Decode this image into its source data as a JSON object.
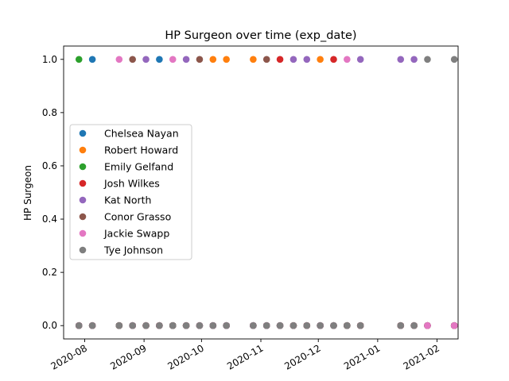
{
  "chart_data": {
    "type": "scatter",
    "title": "HP Surgeon over time (exp_date)",
    "xlabel": "",
    "ylabel": "HP Surgeon",
    "x_axis_kind": "date",
    "xlim": [
      "2020-07-21",
      "2021-02-12"
    ],
    "ylim": [
      -0.05,
      1.05
    ],
    "x_ticks": [
      "2020-08-01",
      "2020-09-01",
      "2020-10-01",
      "2020-11-01",
      "2020-12-01",
      "2021-01-01",
      "2021-02-01"
    ],
    "x_tick_labels": [
      "2020-08",
      "2020-09",
      "2020-10",
      "2020-11",
      "2020-12",
      "2021-01",
      "2021-02"
    ],
    "y_ticks": [
      0.0,
      0.2,
      0.4,
      0.6,
      0.8,
      1.0
    ],
    "y_tick_labels": [
      "0.0",
      "0.2",
      "0.4",
      "0.6",
      "0.8",
      "1.0"
    ],
    "grid": false,
    "legend_position": "center-left",
    "series": [
      {
        "name": "Chelsea Nayan",
        "color": "#1f77b4",
        "points": [
          {
            "x": "2020-07-29",
            "y": 0
          },
          {
            "x": "2020-08-05",
            "y": 1
          },
          {
            "x": "2020-08-19",
            "y": 0
          },
          {
            "x": "2020-08-26",
            "y": 0
          },
          {
            "x": "2020-09-02",
            "y": 0
          },
          {
            "x": "2020-09-09",
            "y": 1
          },
          {
            "x": "2020-09-16",
            "y": 0
          },
          {
            "x": "2020-09-23",
            "y": 0
          },
          {
            "x": "2020-09-30",
            "y": 0
          },
          {
            "x": "2020-10-07",
            "y": 0
          },
          {
            "x": "2020-10-14",
            "y": 0
          },
          {
            "x": "2020-10-28",
            "y": 0
          },
          {
            "x": "2020-11-04",
            "y": 0
          },
          {
            "x": "2020-11-11",
            "y": 0
          },
          {
            "x": "2020-11-18",
            "y": 0
          },
          {
            "x": "2020-11-25",
            "y": 0
          },
          {
            "x": "2020-12-02",
            "y": 0
          },
          {
            "x": "2020-12-09",
            "y": 0
          },
          {
            "x": "2020-12-16",
            "y": 0
          },
          {
            "x": "2020-12-23",
            "y": 0
          },
          {
            "x": "2021-01-13",
            "y": 0
          },
          {
            "x": "2021-01-20",
            "y": 0
          },
          {
            "x": "2021-01-27",
            "y": 0
          },
          {
            "x": "2021-02-10",
            "y": 0
          }
        ]
      },
      {
        "name": "Robert Howard",
        "color": "#ff7f0e",
        "points": [
          {
            "x": "2020-07-29",
            "y": 0
          },
          {
            "x": "2020-08-05",
            "y": 0
          },
          {
            "x": "2020-08-19",
            "y": 0
          },
          {
            "x": "2020-08-26",
            "y": 0
          },
          {
            "x": "2020-09-02",
            "y": 0
          },
          {
            "x": "2020-09-09",
            "y": 0
          },
          {
            "x": "2020-09-16",
            "y": 0
          },
          {
            "x": "2020-09-23",
            "y": 0
          },
          {
            "x": "2020-09-30",
            "y": 0
          },
          {
            "x": "2020-10-07",
            "y": 1
          },
          {
            "x": "2020-10-14",
            "y": 1
          },
          {
            "x": "2020-10-28",
            "y": 1
          },
          {
            "x": "2020-11-04",
            "y": 0
          },
          {
            "x": "2020-11-11",
            "y": 0
          },
          {
            "x": "2020-11-18",
            "y": 0
          },
          {
            "x": "2020-11-25",
            "y": 0
          },
          {
            "x": "2020-12-02",
            "y": 1
          },
          {
            "x": "2020-12-09",
            "y": 0
          },
          {
            "x": "2020-12-16",
            "y": 0
          },
          {
            "x": "2020-12-23",
            "y": 0
          },
          {
            "x": "2021-01-13",
            "y": 0
          },
          {
            "x": "2021-01-20",
            "y": 0
          },
          {
            "x": "2021-01-27",
            "y": 0
          },
          {
            "x": "2021-02-10",
            "y": 0
          }
        ]
      },
      {
        "name": "Emily Gelfand",
        "color": "#2ca02c",
        "points": [
          {
            "x": "2020-07-29",
            "y": 1
          },
          {
            "x": "2020-08-05",
            "y": 0
          },
          {
            "x": "2020-08-19",
            "y": 0
          },
          {
            "x": "2020-08-26",
            "y": 0
          },
          {
            "x": "2020-09-02",
            "y": 0
          },
          {
            "x": "2020-09-09",
            "y": 0
          },
          {
            "x": "2020-09-16",
            "y": 0
          },
          {
            "x": "2020-09-23",
            "y": 0
          },
          {
            "x": "2020-09-30",
            "y": 0
          },
          {
            "x": "2020-10-07",
            "y": 0
          },
          {
            "x": "2020-10-14",
            "y": 0
          },
          {
            "x": "2020-10-28",
            "y": 0
          },
          {
            "x": "2020-11-04",
            "y": 0
          },
          {
            "x": "2020-11-11",
            "y": 0
          },
          {
            "x": "2020-11-18",
            "y": 0
          },
          {
            "x": "2020-11-25",
            "y": 0
          },
          {
            "x": "2020-12-02",
            "y": 0
          },
          {
            "x": "2020-12-09",
            "y": 0
          },
          {
            "x": "2020-12-16",
            "y": 0
          },
          {
            "x": "2020-12-23",
            "y": 0
          },
          {
            "x": "2021-01-13",
            "y": 0
          },
          {
            "x": "2021-01-20",
            "y": 0
          },
          {
            "x": "2021-01-27",
            "y": 0
          },
          {
            "x": "2021-02-10",
            "y": 0
          }
        ]
      },
      {
        "name": "Josh Wilkes",
        "color": "#d62728",
        "points": [
          {
            "x": "2020-07-29",
            "y": 0
          },
          {
            "x": "2020-08-05",
            "y": 0
          },
          {
            "x": "2020-08-19",
            "y": 0
          },
          {
            "x": "2020-08-26",
            "y": 0
          },
          {
            "x": "2020-09-02",
            "y": 0
          },
          {
            "x": "2020-09-09",
            "y": 0
          },
          {
            "x": "2020-09-16",
            "y": 0
          },
          {
            "x": "2020-09-23",
            "y": 0
          },
          {
            "x": "2020-09-30",
            "y": 0
          },
          {
            "x": "2020-10-07",
            "y": 0
          },
          {
            "x": "2020-10-14",
            "y": 0
          },
          {
            "x": "2020-10-28",
            "y": 0
          },
          {
            "x": "2020-11-04",
            "y": 0
          },
          {
            "x": "2020-11-11",
            "y": 1
          },
          {
            "x": "2020-11-18",
            "y": 0
          },
          {
            "x": "2020-11-25",
            "y": 0
          },
          {
            "x": "2020-12-02",
            "y": 0
          },
          {
            "x": "2020-12-09",
            "y": 1
          },
          {
            "x": "2020-12-16",
            "y": 0
          },
          {
            "x": "2020-12-23",
            "y": 0
          },
          {
            "x": "2021-01-13",
            "y": 0
          },
          {
            "x": "2021-01-20",
            "y": 0
          },
          {
            "x": "2021-01-27",
            "y": 0
          },
          {
            "x": "2021-02-10",
            "y": 0
          }
        ]
      },
      {
        "name": "Kat North",
        "color": "#9467bd",
        "points": [
          {
            "x": "2020-07-29",
            "y": 0
          },
          {
            "x": "2020-08-05",
            "y": 0
          },
          {
            "x": "2020-08-19",
            "y": 0
          },
          {
            "x": "2020-08-26",
            "y": 0
          },
          {
            "x": "2020-09-02",
            "y": 1
          },
          {
            "x": "2020-09-09",
            "y": 0
          },
          {
            "x": "2020-09-16",
            "y": 0
          },
          {
            "x": "2020-09-23",
            "y": 1
          },
          {
            "x": "2020-09-30",
            "y": 0
          },
          {
            "x": "2020-10-07",
            "y": 0
          },
          {
            "x": "2020-10-14",
            "y": 0
          },
          {
            "x": "2020-10-28",
            "y": 0
          },
          {
            "x": "2020-11-04",
            "y": 0
          },
          {
            "x": "2020-11-11",
            "y": 0
          },
          {
            "x": "2020-11-18",
            "y": 1
          },
          {
            "x": "2020-11-25",
            "y": 1
          },
          {
            "x": "2020-12-02",
            "y": 0
          },
          {
            "x": "2020-12-09",
            "y": 0
          },
          {
            "x": "2020-12-16",
            "y": 0
          },
          {
            "x": "2020-12-23",
            "y": 1
          },
          {
            "x": "2021-01-13",
            "y": 1
          },
          {
            "x": "2021-01-20",
            "y": 1
          },
          {
            "x": "2021-01-27",
            "y": 0
          },
          {
            "x": "2021-02-10",
            "y": 0
          }
        ]
      },
      {
        "name": "Conor Grasso",
        "color": "#8c564b",
        "points": [
          {
            "x": "2020-07-29",
            "y": 0
          },
          {
            "x": "2020-08-05",
            "y": 0
          },
          {
            "x": "2020-08-19",
            "y": 0
          },
          {
            "x": "2020-08-26",
            "y": 1
          },
          {
            "x": "2020-09-02",
            "y": 0
          },
          {
            "x": "2020-09-09",
            "y": 0
          },
          {
            "x": "2020-09-16",
            "y": 0
          },
          {
            "x": "2020-09-23",
            "y": 0
          },
          {
            "x": "2020-09-30",
            "y": 1
          },
          {
            "x": "2020-10-07",
            "y": 0
          },
          {
            "x": "2020-10-14",
            "y": 0
          },
          {
            "x": "2020-10-28",
            "y": 0
          },
          {
            "x": "2020-11-04",
            "y": 1
          },
          {
            "x": "2020-11-11",
            "y": 0
          },
          {
            "x": "2020-11-18",
            "y": 0
          },
          {
            "x": "2020-11-25",
            "y": 0
          },
          {
            "x": "2020-12-02",
            "y": 0
          },
          {
            "x": "2020-12-09",
            "y": 0
          },
          {
            "x": "2020-12-16",
            "y": 0
          },
          {
            "x": "2020-12-23",
            "y": 0
          },
          {
            "x": "2021-01-13",
            "y": 0
          },
          {
            "x": "2021-01-20",
            "y": 0
          },
          {
            "x": "2021-01-27",
            "y": 0
          },
          {
            "x": "2021-02-10",
            "y": 0
          }
        ]
      },
      {
        "name": "Jackie Swapp",
        "color": "#e377c2",
        "points": [
          {
            "x": "2020-07-29",
            "y": 0
          },
          {
            "x": "2020-08-05",
            "y": 0
          },
          {
            "x": "2020-08-19",
            "y": 1
          },
          {
            "x": "2020-08-26",
            "y": 0
          },
          {
            "x": "2020-09-02",
            "y": 0
          },
          {
            "x": "2020-09-09",
            "y": 0
          },
          {
            "x": "2020-09-16",
            "y": 1
          },
          {
            "x": "2020-09-23",
            "y": 0
          },
          {
            "x": "2020-09-30",
            "y": 0
          },
          {
            "x": "2020-10-07",
            "y": 0
          },
          {
            "x": "2020-10-14",
            "y": 0
          },
          {
            "x": "2020-10-28",
            "y": 0
          },
          {
            "x": "2020-11-04",
            "y": 0
          },
          {
            "x": "2020-11-11",
            "y": 0
          },
          {
            "x": "2020-11-18",
            "y": 0
          },
          {
            "x": "2020-11-25",
            "y": 0
          },
          {
            "x": "2020-12-02",
            "y": 0
          },
          {
            "x": "2020-12-09",
            "y": 0
          },
          {
            "x": "2020-12-16",
            "y": 1
          },
          {
            "x": "2020-12-23",
            "y": 0
          },
          {
            "x": "2021-01-13",
            "y": 0
          },
          {
            "x": "2021-01-20",
            "y": 0
          },
          {
            "x": "2021-01-27",
            "y": 0
          },
          {
            "x": "2021-02-10",
            "y": 0
          }
        ]
      },
      {
        "name": "Tye Johnson",
        "color": "#7f7f7f",
        "points": [
          {
            "x": "2020-07-29",
            "y": 0
          },
          {
            "x": "2020-08-05",
            "y": 0
          },
          {
            "x": "2020-08-19",
            "y": 0
          },
          {
            "x": "2020-08-26",
            "y": 0
          },
          {
            "x": "2020-09-02",
            "y": 0
          },
          {
            "x": "2020-09-09",
            "y": 0
          },
          {
            "x": "2020-09-16",
            "y": 0
          },
          {
            "x": "2020-09-23",
            "y": 0
          },
          {
            "x": "2020-09-30",
            "y": 0
          },
          {
            "x": "2020-10-07",
            "y": 0
          },
          {
            "x": "2020-10-14",
            "y": 0
          },
          {
            "x": "2020-10-28",
            "y": 0
          },
          {
            "x": "2020-11-04",
            "y": 0
          },
          {
            "x": "2020-11-11",
            "y": 0
          },
          {
            "x": "2020-11-18",
            "y": 0
          },
          {
            "x": "2020-11-25",
            "y": 0
          },
          {
            "x": "2020-12-02",
            "y": 0
          },
          {
            "x": "2020-12-09",
            "y": 0
          },
          {
            "x": "2020-12-16",
            "y": 0
          },
          {
            "x": "2020-12-23",
            "y": 0
          },
          {
            "x": "2021-01-13",
            "y": 0
          },
          {
            "x": "2021-01-20",
            "y": 0
          },
          {
            "x": "2021-01-27",
            "y": 1
          },
          {
            "x": "2021-02-10",
            "y": 1
          }
        ]
      }
    ]
  }
}
